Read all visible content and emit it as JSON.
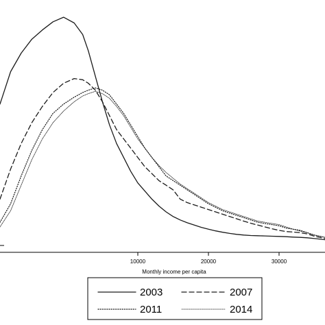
{
  "chart_data": {
    "type": "line",
    "xlabel": "Monthly income per capita",
    "ylabel": "",
    "xlim": [
      -9500,
      36500
    ],
    "ylim": [
      0,
      1
    ],
    "x_ticks": [
      10000,
      20000,
      30000
    ],
    "x_tick_labels": [
      "10000",
      "20000",
      "30000"
    ],
    "grid": false,
    "legend_position": "bottom",
    "series": [
      {
        "name": "2003",
        "style": "solid",
        "x": [
          -9500,
          -8000,
          -6500,
          -5000,
          -3500,
          -2000,
          -500,
          1000,
          2200,
          3000,
          4000,
          5000,
          6000,
          7000,
          8000,
          9000,
          10000,
          11000,
          12000,
          13000,
          14000,
          15000,
          16000,
          17000,
          18000,
          19000,
          20000,
          21000,
          22000,
          23000,
          24000,
          25000,
          26000,
          27000,
          28000,
          29000,
          30000,
          31000,
          32000,
          33000,
          34000,
          35000,
          36500
        ],
        "y": [
          0.61,
          0.75,
          0.83,
          0.89,
          0.93,
          0.965,
          0.985,
          0.96,
          0.91,
          0.84,
          0.73,
          0.62,
          0.52,
          0.44,
          0.38,
          0.32,
          0.27,
          0.235,
          0.2,
          0.17,
          0.145,
          0.125,
          0.11,
          0.098,
          0.088,
          0.078,
          0.07,
          0.063,
          0.057,
          0.052,
          0.048,
          0.045,
          0.043,
          0.042,
          0.041,
          0.04,
          0.039,
          0.038,
          0.036,
          0.035,
          0.033,
          0.03,
          0.025
        ]
      },
      {
        "name": "2007",
        "style": "dashed",
        "x": [
          -9500,
          -8000,
          -6500,
          -5000,
          -3500,
          -2000,
          -500,
          1000,
          2200,
          3000,
          4000,
          5000,
          6000,
          7000,
          8000,
          9000,
          10000,
          11000,
          12000,
          13000,
          14000,
          15000,
          16000,
          17000,
          18000,
          19000,
          20000,
          21000,
          22000,
          23000,
          24000,
          25000,
          26000,
          27000,
          28000,
          29000,
          30000,
          31000,
          32000,
          33000,
          34000,
          35000,
          36500
        ],
        "y": [
          0.2,
          0.33,
          0.44,
          0.53,
          0.6,
          0.66,
          0.7,
          0.72,
          0.715,
          0.7,
          0.67,
          0.62,
          0.56,
          0.5,
          0.46,
          0.42,
          0.38,
          0.34,
          0.31,
          0.28,
          0.26,
          0.24,
          0.2,
          0.185,
          0.175,
          0.165,
          0.155,
          0.145,
          0.135,
          0.125,
          0.115,
          0.105,
          0.096,
          0.088,
          0.08,
          0.072,
          0.065,
          0.06,
          0.058,
          0.055,
          0.05,
          0.04,
          0.03
        ]
      },
      {
        "name": "2011",
        "style": "dotted",
        "x": [
          -9500,
          -8000,
          -6500,
          -5000,
          -3500,
          -2000,
          -500,
          1000,
          2200,
          3000,
          4000,
          5000,
          6000,
          7000,
          8000,
          9000,
          10000,
          11000,
          12000,
          13000,
          14000,
          15000,
          16000,
          17000,
          18000,
          19000,
          20000,
          21000,
          22000,
          23000,
          24000,
          25000,
          26000,
          27000,
          28000,
          29000,
          30000,
          31000,
          32000,
          33000,
          34000,
          35000,
          36500
        ],
        "y": [
          0.1,
          0.18,
          0.3,
          0.41,
          0.5,
          0.57,
          0.61,
          0.64,
          0.66,
          0.67,
          0.68,
          0.67,
          0.65,
          0.61,
          0.57,
          0.52,
          0.47,
          0.42,
          0.38,
          0.34,
          0.3,
          0.28,
          0.26,
          0.24,
          0.22,
          0.2,
          0.18,
          0.165,
          0.15,
          0.14,
          0.13,
          0.12,
          0.11,
          0.1,
          0.095,
          0.09,
          0.085,
          0.075,
          0.07,
          0.065,
          0.055,
          0.045,
          0.035
        ]
      },
      {
        "name": "2014",
        "style": "dotted-fine",
        "x": [
          -9500,
          -8000,
          -6500,
          -5000,
          -3500,
          -2000,
          -500,
          1000,
          2200,
          3000,
          4000,
          5000,
          6000,
          7000,
          8000,
          9000,
          10000,
          11000,
          12000,
          13000,
          14000,
          15000,
          16000,
          17000,
          18000,
          19000,
          20000,
          21000,
          22000,
          23000,
          24000,
          25000,
          26000,
          27000,
          28000,
          29000,
          30000,
          31000,
          32000,
          33000,
          34000,
          35000,
          36500
        ],
        "y": [
          0.08,
          0.15,
          0.26,
          0.37,
          0.46,
          0.53,
          0.58,
          0.62,
          0.645,
          0.655,
          0.665,
          0.655,
          0.635,
          0.6,
          0.56,
          0.51,
          0.46,
          0.42,
          0.38,
          0.345,
          0.315,
          0.29,
          0.265,
          0.245,
          0.225,
          0.205,
          0.185,
          0.17,
          0.155,
          0.145,
          0.135,
          0.125,
          0.115,
          0.105,
          0.1,
          0.095,
          0.09,
          0.08,
          0.07,
          0.062,
          0.055,
          0.045,
          0.035
        ]
      }
    ]
  },
  "colors": {
    "line": "#1a1a1a",
    "axis": "#000000",
    "background": "#ffffff"
  }
}
